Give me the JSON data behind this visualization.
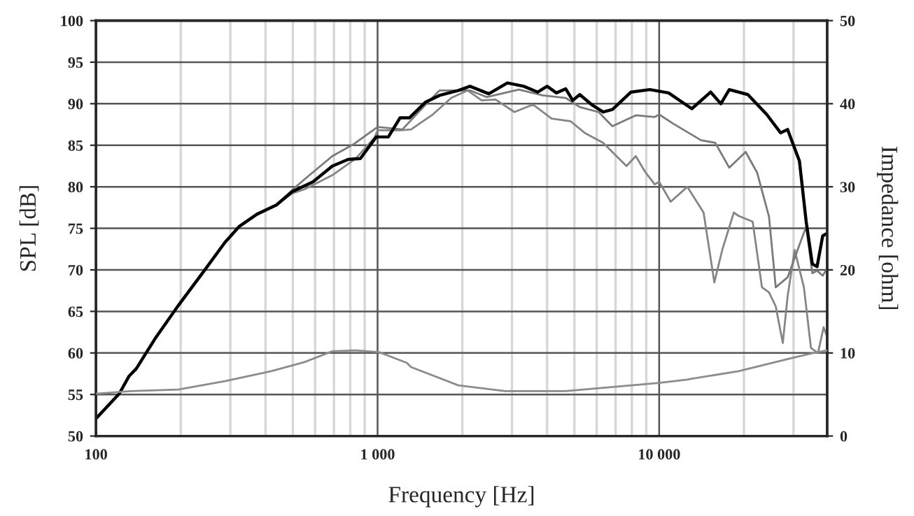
{
  "chart_data": {
    "type": "line",
    "xlabel": "Frequency [Hz]",
    "ylabel": "SPL [dB]",
    "y2label": "Impedance [ohm]",
    "log": "x",
    "grid": true,
    "legend": false,
    "marker": "none",
    "line_style": "solid",
    "xlim": [
      100,
      39500
    ],
    "xticks": [
      100,
      {
        "value": 200,
        "label": null
      },
      {
        "value": 300,
        "label": null
      },
      {
        "value": 400,
        "label": null
      },
      {
        "value": 500,
        "label": null
      },
      {
        "value": 600,
        "label": null
      },
      {
        "value": 700,
        "label": null
      },
      {
        "value": 800,
        "label": null
      },
      {
        "value": 900,
        "label": null
      },
      {
        "value": 1000,
        "label": "1 000"
      },
      {
        "value": 2000,
        "label": null
      },
      {
        "value": 3000,
        "label": null
      },
      {
        "value": 4000,
        "label": null
      },
      {
        "value": 5000,
        "label": null
      },
      {
        "value": 6000,
        "label": null
      },
      {
        "value": 7000,
        "label": null
      },
      {
        "value": 8000,
        "label": null
      },
      {
        "value": 9000,
        "label": null
      },
      {
        "value": 10000,
        "label": "10 000"
      },
      {
        "value": 20000,
        "label": null
      },
      {
        "value": 30000,
        "label": null
      }
    ],
    "ylim": [
      50,
      100
    ],
    "yticks": [
      50,
      55,
      60,
      65,
      70,
      75,
      80,
      85,
      90,
      95,
      100
    ],
    "y2lim": [
      0,
      50
    ],
    "y2ticks": [
      0,
      10,
      20,
      30,
      40,
      50
    ],
    "series": [
      {
        "color": "#858585",
        "x": [
          100,
          121,
          131,
          139,
          162,
          196,
          246,
          287,
          322,
          373,
          437,
          497,
          550,
          691,
          836,
          975,
          1000,
          1202,
          1315,
          1570,
          1828,
          2089,
          2344,
          2624,
          3062,
          3565,
          4150,
          4842,
          5433,
          6324,
          7656,
          8260,
          8913,
          9638,
          10000,
          10990,
          12590,
          14380,
          15700,
          16750,
          18410,
          19140,
          21480,
          23170,
          24550,
          25940,
          27480,
          28580,
          30270,
          32660,
          34590,
          36640,
          38370,
          39500
        ],
        "values": [
          52.1,
          55.1,
          57.2,
          58.1,
          61.7,
          65.7,
          70.2,
          73.3,
          75.2,
          76.7,
          77.8,
          79.2,
          79.7,
          81.4,
          83.4,
          85.9,
          86.8,
          86.8,
          86.9,
          88.7,
          90.7,
          91.6,
          90.4,
          90.5,
          89.0,
          89.9,
          88.2,
          87.9,
          86.5,
          85.3,
          82.5,
          83.7,
          81.8,
          80.3,
          80.6,
          78.2,
          80.0,
          76.9,
          68.5,
          72.4,
          76.9,
          76.5,
          75.8,
          67.9,
          67.3,
          65.6,
          61.2,
          66.8,
          72.4,
          67.9,
          60.6,
          60.0,
          63.1,
          61.9
        ]
      },
      {
        "color": "#7a7a7a",
        "x": [
          100,
          121,
          131,
          139,
          162,
          196,
          246,
          287,
          322,
          373,
          437,
          497,
          550,
          691,
          820,
          1000,
          1225,
          1482,
          1660,
          1936,
          2129,
          2438,
          3177,
          3855,
          4656,
          5223,
          6095,
          6823,
          8260,
          9638,
          10000,
          11220,
          14090,
          15810,
          17740,
          20280,
          22280,
          24550,
          25940,
          28580,
          31480,
          33270,
          34990,
          36370,
          38090,
          39500
        ],
        "values": [
          52.1,
          55.1,
          57.2,
          58.1,
          61.7,
          65.7,
          70.2,
          73.3,
          75.2,
          76.7,
          77.8,
          79.6,
          80.9,
          83.7,
          85.1,
          87.2,
          86.9,
          89.9,
          91.6,
          91.6,
          91.6,
          90.8,
          91.7,
          91.0,
          90.7,
          89.6,
          89.0,
          87.3,
          88.6,
          88.4,
          88.7,
          87.6,
          85.6,
          85.3,
          82.3,
          84.2,
          81.7,
          76.4,
          67.9,
          69.1,
          73.0,
          75.2,
          69.6,
          69.9,
          69.3,
          70.2
        ]
      },
      {
        "color": "#000000",
        "x": [
          100,
          121,
          131,
          139,
          162,
          196,
          246,
          287,
          322,
          373,
          437,
          497,
          590,
          691,
          786,
          869,
          989,
          1092,
          1202,
          1297,
          1482,
          1660,
          1936,
          2129,
          2483,
          2891,
          3304,
          3706,
          4000,
          4315,
          4656,
          4932,
          5223,
          5754,
          6324,
          6823,
          7943,
          9268,
          10800,
          13060,
          15240,
          16560,
          17740,
          20650,
          24100,
          26980,
          28580,
          31480,
          33270,
          34990,
          36370,
          38090,
          39500
        ],
        "values": [
          52.1,
          55.1,
          57.2,
          58.1,
          61.7,
          65.7,
          70.2,
          73.3,
          75.2,
          76.7,
          77.8,
          79.4,
          80.6,
          82.5,
          83.3,
          83.4,
          86.0,
          86.0,
          88.3,
          88.3,
          90.2,
          91.0,
          91.6,
          92.1,
          91.2,
          92.5,
          92.1,
          91.4,
          92.1,
          91.3,
          91.8,
          90.4,
          91.1,
          89.9,
          89.0,
          89.3,
          91.4,
          91.7,
          91.3,
          89.4,
          91.4,
          90.0,
          91.7,
          91.1,
          88.7,
          86.5,
          86.9,
          83.1,
          75.8,
          70.7,
          70.4,
          74.1,
          74.4
        ]
      },
      {
        "color": "#8c8c8c",
        "axis": "y2",
        "x": [
          100,
          133,
          196,
          287,
          419,
          550,
          691,
          836,
          1012,
          1271,
          1315,
          1936,
          2838,
          4645,
          7345,
          10000,
          12590,
          13060,
          19140,
          28050,
          35240,
          39500
        ],
        "values": [
          5.1,
          5.4,
          5.6,
          6.6,
          7.8,
          8.9,
          10.2,
          10.3,
          10.1,
          8.8,
          8.3,
          6.1,
          5.4,
          5.4,
          6.0,
          6.4,
          6.8,
          6.9,
          7.8,
          9.2,
          10.0,
          10.3
        ]
      }
    ]
  }
}
